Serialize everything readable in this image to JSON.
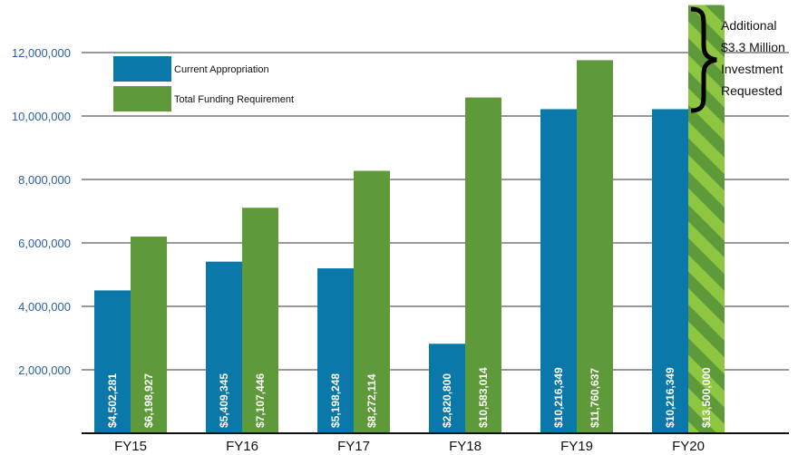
{
  "chart_data": {
    "type": "bar",
    "categories": [
      "FY15",
      "FY16",
      "FY17",
      "FY18",
      "FY19",
      "FY20"
    ],
    "series": [
      {
        "name": "Current Appropriation",
        "color": "#0a78a8",
        "values": [
          4502281,
          5409345,
          5198248,
          2820800,
          10216349,
          10216349
        ],
        "labels": [
          "$4,502,281",
          "$5,409,345",
          "$5,198,248",
          "$2,820,800",
          "$10,216,349",
          "$10,216,349"
        ]
      },
      {
        "name": "Total Funding Requirement",
        "color": "#5e9a3a",
        "values": [
          6198927,
          7107446,
          8272114,
          10583014,
          11760637,
          13500000
        ],
        "labels": [
          "$6,198,927",
          "$7,107,446",
          "$8,272,114",
          "$10,583,014",
          "$11,760,637",
          "$13,500,000"
        ]
      }
    ],
    "highlight": {
      "category": "FY20",
      "series": "Total Funding Requirement",
      "pattern": "diagonal-stripes",
      "stripe_colors": [
        "#5e9a3a",
        "#8ec641"
      ]
    },
    "yticks": [
      2000000,
      4000000,
      6000000,
      8000000,
      10000000,
      12000000
    ],
    "ytick_labels": [
      "2,000,000",
      "4,000,000",
      "6,000,000",
      "8,000,000",
      "10,000,000",
      "12,000,000"
    ],
    "ylim": [
      0,
      13500000
    ],
    "grid": true,
    "legend_position": "top-left",
    "annotation": {
      "lines": [
        "Additional",
        "$3.3 Million",
        "Investment",
        "Requested"
      ],
      "bracket": "curly-brace"
    },
    "title": "",
    "xlabel": "",
    "ylabel": ""
  }
}
